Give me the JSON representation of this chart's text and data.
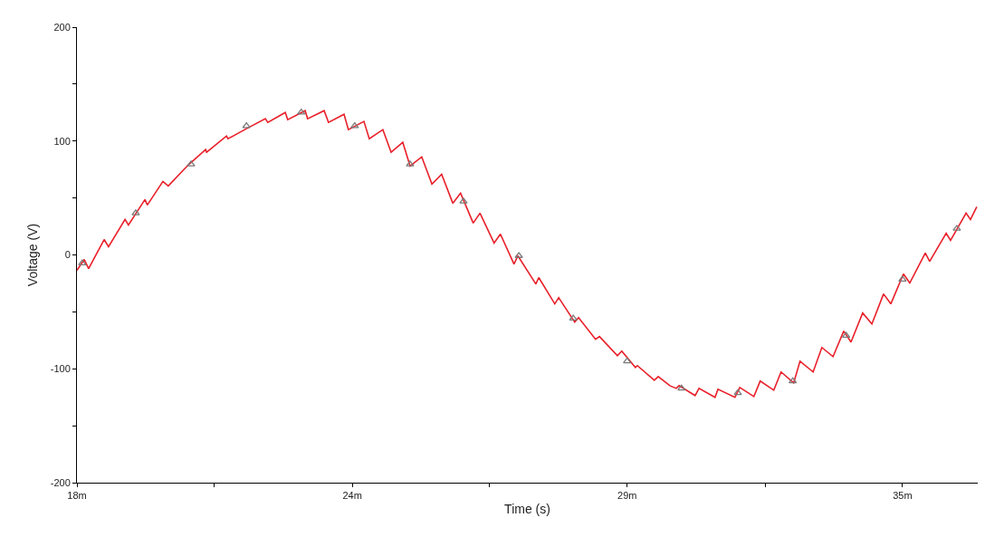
{
  "chart_data": {
    "type": "line",
    "xlabel": "Time (s)",
    "ylabel": "Voltage (V)",
    "xlim": [
      18,
      36.55
    ],
    "ylim": [
      -200,
      200
    ],
    "xticks": [
      {
        "value": 18,
        "label": "18m"
      },
      {
        "value": 20.83,
        "label": null
      },
      {
        "value": 23.67,
        "label": "24m"
      },
      {
        "value": 26.5,
        "label": null
      },
      {
        "value": 29.33,
        "label": "29m"
      },
      {
        "value": 32.17,
        "label": null
      },
      {
        "value": 35,
        "label": "35m"
      }
    ],
    "yticks": [
      -200,
      {
        "value": -150,
        "label": null
      },
      -100,
      {
        "value": -50,
        "label": null
      },
      0,
      {
        "value": 50,
        "label": null
      },
      100,
      {
        "value": 150,
        "label": null
      },
      200
    ],
    "series": [
      {
        "color": "#e8202a",
        "marker": "none",
        "line_style": "solid",
        "x": [
          18.0,
          18.15,
          18.24,
          18.56,
          18.65,
          18.99,
          19.06,
          19.4,
          19.45,
          19.77,
          19.88,
          20.29,
          20.65,
          20.67,
          21.08,
          21.11,
          21.49,
          21.88,
          21.93,
          22.29,
          22.34,
          22.7,
          22.75,
          23.09,
          23.18,
          23.5,
          23.59,
          23.91,
          24.02,
          24.3,
          24.47,
          24.71,
          24.86,
          25.1,
          25.31,
          25.51,
          25.74,
          25.9,
          26.16,
          26.3,
          26.59,
          26.72,
          27.0,
          27.08,
          27.45,
          27.51,
          27.84,
          27.92,
          28.25,
          28.33,
          28.68,
          28.76,
          29.13,
          29.22,
          29.5,
          29.54,
          29.89,
          29.97,
          30.21,
          30.34,
          30.4,
          30.73,
          30.81,
          31.14,
          31.2,
          31.55,
          31.65,
          31.94,
          32.07,
          32.35,
          32.5,
          32.76,
          32.89,
          33.16,
          33.34,
          33.57,
          33.79,
          33.94,
          34.18,
          34.37,
          34.61,
          34.76,
          35.02,
          35.15,
          35.47,
          35.56,
          35.9,
          35.99,
          36.31,
          36.4,
          36.53
        ],
        "values": [
          -13.5,
          -4.0,
          -12.0,
          13.5,
          7.2,
          31.1,
          26.3,
          48.6,
          43.8,
          64.5,
          60.6,
          78.9,
          92.5,
          90.1,
          104.4,
          102.0,
          110.8,
          119.6,
          116.4,
          125.1,
          118.8,
          126.7,
          119.6,
          126.7,
          116.4,
          123.5,
          110.0,
          117.2,
          102.0,
          110.0,
          90.1,
          98.8,
          78.1,
          86.1,
          62.2,
          70.9,
          45.4,
          54.2,
          27.9,
          36.7,
          10.4,
          18.3,
          -8.0,
          -0.8,
          -25.5,
          -19.9,
          -43.0,
          -37.5,
          -59.0,
          -55.0,
          -74.1,
          -71.7,
          -88.5,
          -84.5,
          -98.8,
          -97.2,
          -110.0,
          -106.8,
          -114.8,
          -117.2,
          -114.8,
          -123.5,
          -117.2,
          -125.1,
          -118.0,
          -125.1,
          -116.4,
          -124.3,
          -110.8,
          -118.8,
          -102.8,
          -112.4,
          -93.3,
          -102.8,
          -81.3,
          -89.3,
          -66.9,
          -76.5,
          -51.0,
          -60.6,
          -34.3,
          -43.0,
          -16.7,
          -24.7,
          1.6,
          -5.6,
          19.1,
          12.8,
          36.7,
          31.1,
          42.2
        ]
      },
      {
        "type": "scatter",
        "color": "#7a7a7a",
        "marker": "triangle",
        "x": [
          18.11,
          19.21,
          20.35,
          21.49,
          22.62,
          23.72,
          24.86,
          25.96,
          27.1,
          28.22,
          29.33,
          30.45,
          31.61,
          32.74,
          33.84,
          35.0,
          36.12
        ],
        "values": [
          -7.2,
          36.7,
          79.7,
          113.2,
          125.1,
          113.2,
          79.7,
          47.0,
          -0.8,
          -55.8,
          -93.3,
          -117.2,
          -121.1,
          -110.8,
          -70.9,
          -21.5,
          23.1
        ]
      }
    ]
  }
}
